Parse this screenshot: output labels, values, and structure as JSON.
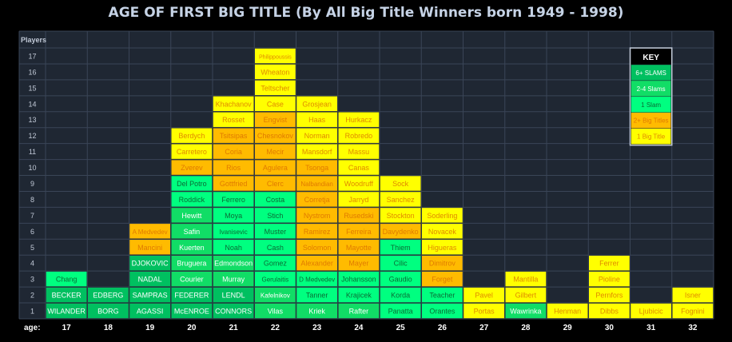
{
  "title": "AGE OF FIRST BIG TITLE (By All Big Title Winners born 1949 - 1998)",
  "chart_data": {
    "type": "table",
    "title": "AGE OF FIRST BIG TITLE (By All Big Title Winners born 1949 - 1998)",
    "y_axis_label": "Players",
    "x_axis_label": "age:",
    "ages": [
      17,
      18,
      19,
      20,
      21,
      22,
      23,
      24,
      25,
      26,
      27,
      28,
      29,
      30,
      31,
      32
    ],
    "row_numbers": [
      1,
      2,
      3,
      4,
      5,
      6,
      7,
      8,
      9,
      10,
      11,
      12,
      13,
      14,
      15,
      16,
      17
    ],
    "colors": {
      "six_plus_slams": "#00c060",
      "two_to_four_slams": "#11dd66",
      "one_slam": "#00ff80",
      "two_plus_big_titles": "#ffbb00",
      "one_big_title": "#ffff00"
    },
    "key": {
      "title": "KEY",
      "items": [
        {
          "label": "6+ SLAMS",
          "category": "six_plus_slams"
        },
        {
          "label": "2-4 Slams",
          "category": "two_to_four_slams"
        },
        {
          "label": "1 Slam",
          "category": "one_slam"
        },
        {
          "label": "2+ Big Titles",
          "category": "two_plus_big_titles"
        },
        {
          "label": "1 Big Title",
          "category": "one_big_title"
        }
      ]
    },
    "columns": [
      {
        "age": 17,
        "players": [
          {
            "name": "WILANDER",
            "category": "six_plus_slams"
          },
          {
            "name": "BECKER",
            "category": "six_plus_slams"
          },
          {
            "name": "Chang",
            "category": "one_slam"
          }
        ]
      },
      {
        "age": 18,
        "players": [
          {
            "name": "BORG",
            "category": "six_plus_slams"
          },
          {
            "name": "EDBERG",
            "category": "six_plus_slams"
          }
        ]
      },
      {
        "age": 19,
        "players": [
          {
            "name": "AGASSI",
            "category": "six_plus_slams"
          },
          {
            "name": "SAMPRAS",
            "category": "six_plus_slams"
          },
          {
            "name": "NADAL",
            "category": "six_plus_slams"
          },
          {
            "name": "DJOKOVIC",
            "category": "six_plus_slams"
          },
          {
            "name": "Mancini",
            "category": "two_plus_big_titles"
          },
          {
            "name": "A Medvedev",
            "category": "two_plus_big_titles"
          }
        ]
      },
      {
        "age": 20,
        "players": [
          {
            "name": "McENROE",
            "category": "six_plus_slams"
          },
          {
            "name": "FEDERER",
            "category": "six_plus_slams"
          },
          {
            "name": "Courier",
            "category": "two_to_four_slams"
          },
          {
            "name": "Bruguera",
            "category": "two_to_four_slams"
          },
          {
            "name": "Kuerten",
            "category": "two_to_four_slams"
          },
          {
            "name": "Safin",
            "category": "two_to_four_slams"
          },
          {
            "name": "Hewitt",
            "category": "two_to_four_slams"
          },
          {
            "name": "Roddick",
            "category": "one_slam"
          },
          {
            "name": "Del Potro",
            "category": "one_slam"
          },
          {
            "name": "Zverev",
            "category": "two_plus_big_titles"
          },
          {
            "name": "Carretero",
            "category": "one_big_title"
          },
          {
            "name": "Berdych",
            "category": "one_big_title"
          }
        ]
      },
      {
        "age": 21,
        "players": [
          {
            "name": "CONNORS",
            "category": "six_plus_slams"
          },
          {
            "name": "LENDL",
            "category": "six_plus_slams"
          },
          {
            "name": "Murray",
            "category": "two_to_four_slams"
          },
          {
            "name": "Edmondson",
            "category": "two_to_four_slams"
          },
          {
            "name": "Noah",
            "category": "one_slam"
          },
          {
            "name": "Ivanisevic",
            "category": "one_slam"
          },
          {
            "name": "Moya",
            "category": "one_slam"
          },
          {
            "name": "Ferrero",
            "category": "one_slam"
          },
          {
            "name": "Gottfried",
            "category": "two_plus_big_titles"
          },
          {
            "name": "Rios",
            "category": "two_plus_big_titles"
          },
          {
            "name": "Coria",
            "category": "two_plus_big_titles"
          },
          {
            "name": "Tsitsipas",
            "category": "two_plus_big_titles"
          },
          {
            "name": "Rosset",
            "category": "one_big_title"
          },
          {
            "name": "Khachanov",
            "category": "one_big_title"
          }
        ]
      },
      {
        "age": 22,
        "players": [
          {
            "name": "Vilas",
            "category": "two_to_four_slams"
          },
          {
            "name": "Kafelnikov",
            "category": "two_to_four_slams"
          },
          {
            "name": "Gerulaitis",
            "category": "one_slam"
          },
          {
            "name": "Gomez",
            "category": "one_slam"
          },
          {
            "name": "Cash",
            "category": "one_slam"
          },
          {
            "name": "Muster",
            "category": "one_slam"
          },
          {
            "name": "Stich",
            "category": "one_slam"
          },
          {
            "name": "Costa",
            "category": "one_slam"
          },
          {
            "name": "Clerc",
            "category": "two_plus_big_titles"
          },
          {
            "name": "Agulera",
            "category": "two_plus_big_titles"
          },
          {
            "name": "Mecir",
            "category": "two_plus_big_titles"
          },
          {
            "name": "Chesnokov",
            "category": "two_plus_big_titles"
          },
          {
            "name": "Engvist",
            "category": "two_plus_big_titles"
          },
          {
            "name": "Case",
            "category": "one_big_title"
          },
          {
            "name": "Teltscher",
            "category": "one_big_title"
          },
          {
            "name": "Wheaton",
            "category": "one_big_title"
          },
          {
            "name": "Philippoussis",
            "category": "one_big_title"
          }
        ]
      },
      {
        "age": 23,
        "players": [
          {
            "name": "Kriek",
            "category": "two_to_four_slams"
          },
          {
            "name": "Tanner",
            "category": "one_slam"
          },
          {
            "name": "D Medvedev",
            "category": "one_slam"
          },
          {
            "name": "Alexander",
            "category": "two_plus_big_titles"
          },
          {
            "name": "Solomon",
            "category": "two_plus_big_titles"
          },
          {
            "name": "Ramirez",
            "category": "two_plus_big_titles"
          },
          {
            "name": "Nystrom",
            "category": "two_plus_big_titles"
          },
          {
            "name": "Corretja",
            "category": "two_plus_big_titles"
          },
          {
            "name": "Nalbandian",
            "category": "two_plus_big_titles"
          },
          {
            "name": "Tsonga",
            "category": "two_plus_big_titles"
          },
          {
            "name": "Mansdorf",
            "category": "one_big_title"
          },
          {
            "name": "Norman",
            "category": "one_big_title"
          },
          {
            "name": "Haas",
            "category": "one_big_title"
          },
          {
            "name": "Grosjean",
            "category": "one_big_title"
          }
        ]
      },
      {
        "age": 24,
        "players": [
          {
            "name": "Rafter",
            "category": "two_to_four_slams"
          },
          {
            "name": "Krajicek",
            "category": "one_slam"
          },
          {
            "name": "Johansson",
            "category": "one_slam"
          },
          {
            "name": "Mayer",
            "category": "two_plus_big_titles"
          },
          {
            "name": "Mayotte",
            "category": "two_plus_big_titles"
          },
          {
            "name": "Ferreira",
            "category": "two_plus_big_titles"
          },
          {
            "name": "Rusedski",
            "category": "two_plus_big_titles"
          },
          {
            "name": "Jarryd",
            "category": "one_big_title"
          },
          {
            "name": "Woodruff",
            "category": "one_big_title"
          },
          {
            "name": "Canas",
            "category": "one_big_title"
          },
          {
            "name": "Massu",
            "category": "one_big_title"
          },
          {
            "name": "Robredo",
            "category": "one_big_title"
          },
          {
            "name": "Hurkacz",
            "category": "one_big_title"
          }
        ]
      },
      {
        "age": 25,
        "players": [
          {
            "name": "Panatta",
            "category": "one_slam"
          },
          {
            "name": "Korda",
            "category": "one_slam"
          },
          {
            "name": "Gaudio",
            "category": "one_slam"
          },
          {
            "name": "Cilic",
            "category": "one_slam"
          },
          {
            "name": "Thiem",
            "category": "one_slam"
          },
          {
            "name": "Davydenko",
            "category": "two_plus_big_titles"
          },
          {
            "name": "Stockton",
            "category": "one_big_title"
          },
          {
            "name": "Sanchez",
            "category": "one_big_title"
          },
          {
            "name": "Sock",
            "category": "one_big_title"
          }
        ]
      },
      {
        "age": 26,
        "players": [
          {
            "name": "Orantes",
            "category": "one_slam"
          },
          {
            "name": "Teacher",
            "category": "one_slam"
          },
          {
            "name": "Forget",
            "category": "two_plus_big_titles"
          },
          {
            "name": "Dimitrov",
            "category": "two_plus_big_titles"
          },
          {
            "name": "Higueras",
            "category": "one_big_title"
          },
          {
            "name": "Novacek",
            "category": "one_big_title"
          },
          {
            "name": "Soderling",
            "category": "one_big_title"
          }
        ]
      },
      {
        "age": 27,
        "players": [
          {
            "name": "Portas",
            "category": "one_big_title"
          },
          {
            "name": "Pavel",
            "category": "one_big_title"
          }
        ]
      },
      {
        "age": 28,
        "players": [
          {
            "name": "Wawrinka",
            "category": "two_to_four_slams"
          },
          {
            "name": "Gilbert",
            "category": "one_big_title"
          },
          {
            "name": "Mantilla",
            "category": "one_big_title"
          }
        ]
      },
      {
        "age": 29,
        "players": [
          {
            "name": "Henman",
            "category": "one_big_title"
          }
        ]
      },
      {
        "age": 30,
        "players": [
          {
            "name": "Dibbs",
            "category": "one_big_title"
          },
          {
            "name": "Pernfors",
            "category": "one_big_title"
          },
          {
            "name": "Pioline",
            "category": "one_big_title"
          },
          {
            "name": "Ferrer",
            "category": "one_big_title"
          }
        ]
      },
      {
        "age": 31,
        "players": [
          {
            "name": "Ljubicic",
            "category": "one_big_title"
          }
        ]
      },
      {
        "age": 32,
        "players": [
          {
            "name": "Fognini",
            "category": "one_big_title"
          },
          {
            "name": "Isner",
            "category": "one_big_title"
          }
        ]
      }
    ]
  }
}
